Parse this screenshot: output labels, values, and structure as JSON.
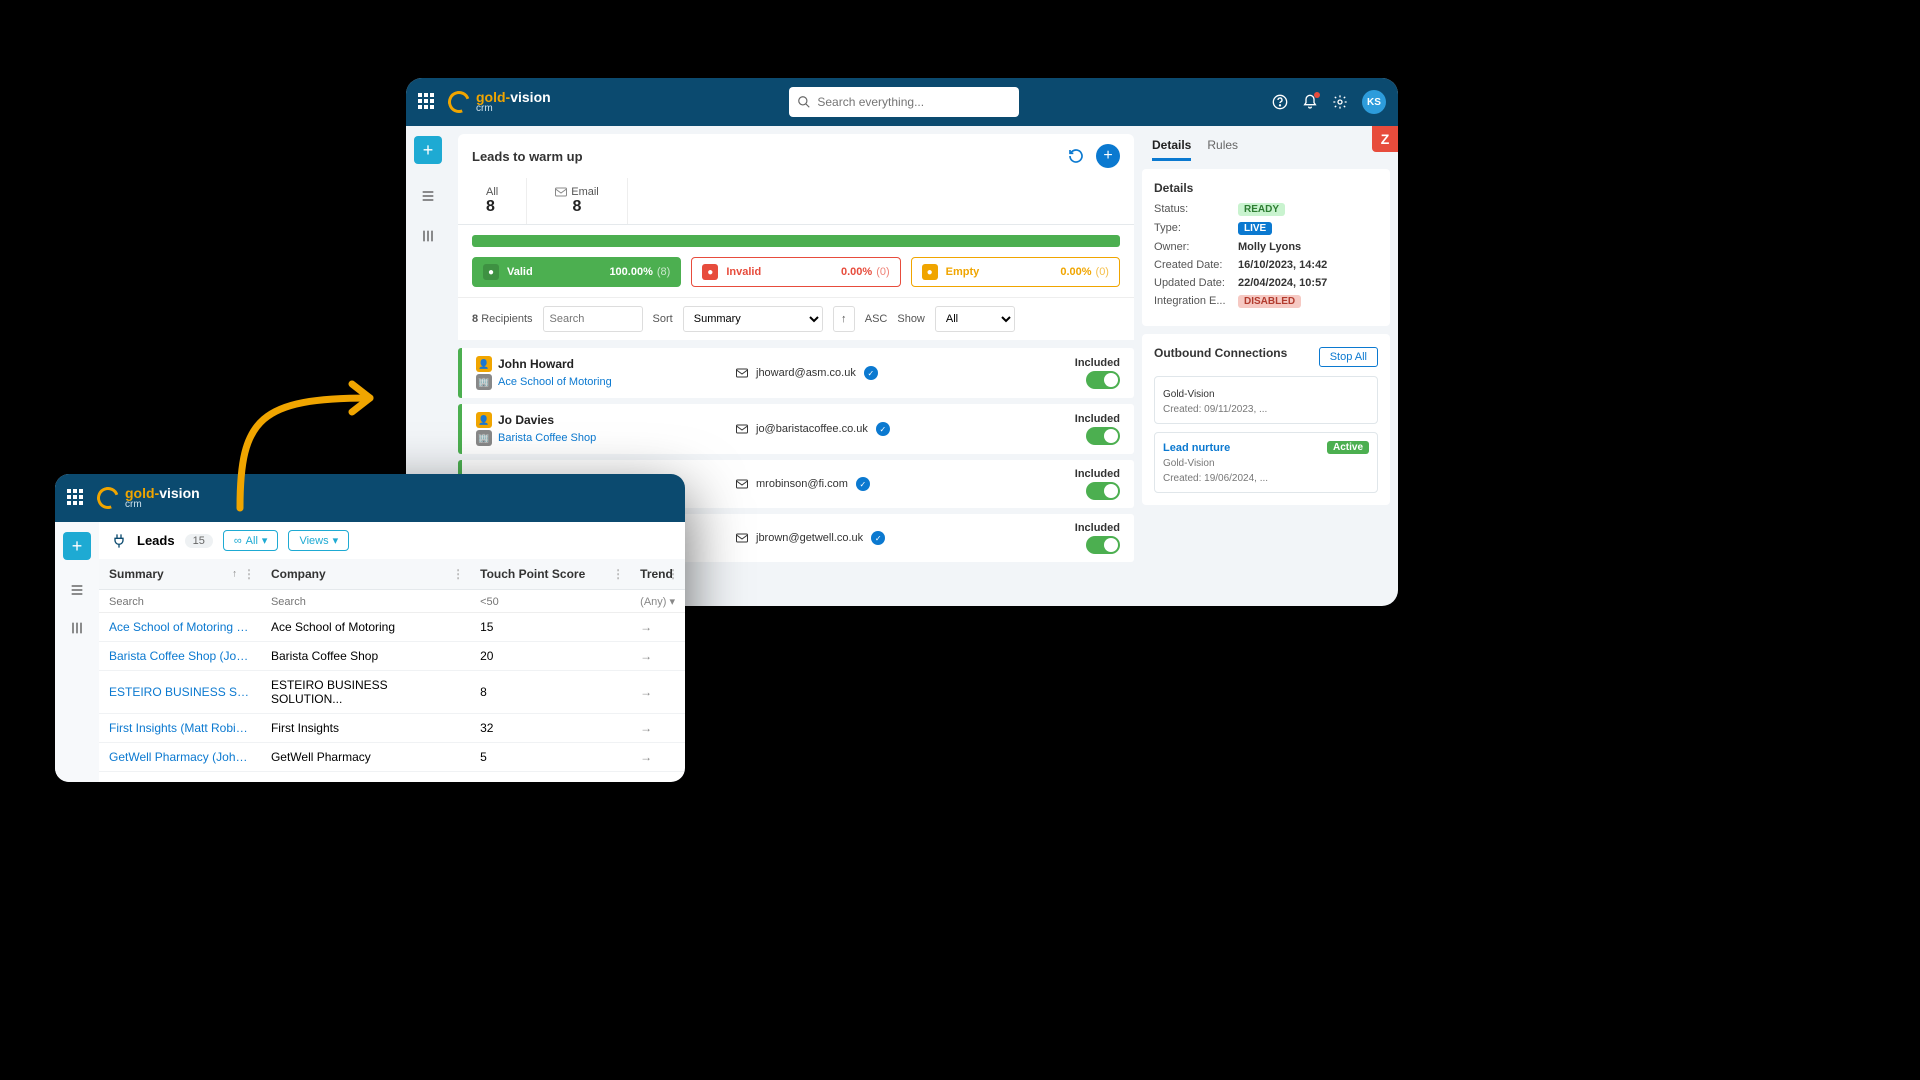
{
  "brand": {
    "name_gold": "gold-",
    "name_vision": "vision",
    "sub": "crm"
  },
  "back": {
    "search_placeholder": "Search everything...",
    "avatar": "KS",
    "title": "Leads to warm up",
    "tabs": [
      {
        "label": "All",
        "count": "8"
      },
      {
        "label": "Email",
        "count": "8",
        "icon": "mail"
      }
    ],
    "progress_color": "#4caf50",
    "pills": [
      {
        "label": "Valid",
        "pct": "100.00%",
        "count": "(8)",
        "bg": "#4caf50",
        "border": "#4caf50",
        "text": "#ffffff",
        "icon_bg": "#3e9142"
      },
      {
        "label": "Invalid",
        "pct": "0.00%",
        "count": "(0)",
        "bg": "#ffffff",
        "border": "#e74c3c",
        "text": "#e74c3c",
        "icon_bg": "#e74c3c"
      },
      {
        "label": "Empty",
        "pct": "0.00%",
        "count": "(0)",
        "bg": "#ffffff",
        "border": "#f0a500",
        "text": "#f0a500",
        "icon_bg": "#f0a500"
      }
    ],
    "filter": {
      "recip_count": "8",
      "recip_label": "Recipients",
      "search_placeholder": "Search",
      "sort_label": "Sort",
      "sort_value": "Summary",
      "dir_label": "ASC",
      "show_label": "Show",
      "show_value": "All"
    },
    "recipients": [
      {
        "name": "John Howard",
        "company": "Ace School of Motoring",
        "email": "jhoward@asm.co.uk",
        "status": "Included"
      },
      {
        "name": "Jo Davies",
        "company": "Barista Coffee Shop",
        "email": "jo@baristacoffee.co.uk",
        "status": "Included"
      },
      {
        "name": "",
        "company": "",
        "email": "mrobinson@fi.com",
        "status": "Included"
      },
      {
        "name": "",
        "company": "",
        "email": "jbrown@getwell.co.uk",
        "status": "Included"
      }
    ],
    "side": {
      "tabs": [
        "Details",
        "Rules"
      ],
      "details_heading": "Details",
      "fields": {
        "status": {
          "label": "Status:",
          "value": "READY",
          "bg": "#c9f3cf",
          "fg": "#2e7d32"
        },
        "type": {
          "label": "Type:",
          "value": "LIVE",
          "bg": "#0b79d0",
          "fg": "#ffffff"
        },
        "owner": {
          "label": "Owner:",
          "value": "Molly Lyons"
        },
        "created": {
          "label": "Created Date:",
          "value": "16/10/2023, 14:42"
        },
        "updated": {
          "label": "Updated Date:",
          "value": "22/04/2024, 10:57"
        },
        "integ": {
          "label": "Integration E...",
          "value": "DISABLED",
          "bg": "#f6c9c3",
          "fg": "#b23b2e"
        }
      },
      "outbound": {
        "heading": "Outbound Connections",
        "stop_all": "Stop All",
        "items": [
          {
            "name": "Gold-Vision",
            "created": "Created: 09/11/2023, ...",
            "truncated": true
          },
          {
            "name": "Lead nurture",
            "created_sub": "Gold-Vision",
            "created": "Created: 19/06/2024, ...",
            "badge": "Active",
            "badge_bg": "#4caf50"
          }
        ]
      }
    }
  },
  "front": {
    "leads_label": "Leads",
    "leads_count": "15",
    "chip_all": "All",
    "chip_views": "Views",
    "columns": [
      "Summary",
      "Company",
      "Touch Point Score",
      "Trend"
    ],
    "filters": [
      "Search",
      "Search",
      "<50",
      "(Any)"
    ],
    "rows": [
      {
        "summary": "Ace School of Motoring (John ...",
        "company": "Ace School of Motoring",
        "score": "15"
      },
      {
        "summary": "Barista Coffee Shop (Jo Davies)",
        "company": "Barista Coffee Shop",
        "score": "20"
      },
      {
        "summary": "ESTEIRO BUSINESS SOLUTION...",
        "company": "ESTEIRO BUSINESS SOLUTION...",
        "score": "8"
      },
      {
        "summary": "First Insights (Matt Robinson)",
        "company": "First Insights",
        "score": "32"
      },
      {
        "summary": "GetWell Pharmacy (John Brown)",
        "company": "GetWell Pharmacy",
        "score": "5"
      }
    ]
  },
  "colors": {
    "header": "#0b4a6f",
    "accent": "#1eaad3",
    "link": "#0b79d0",
    "gold": "#f0a500"
  }
}
